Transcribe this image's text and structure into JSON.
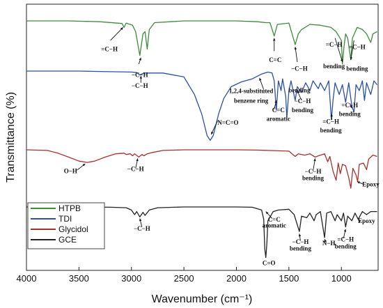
{
  "chart_data": {
    "type": "line",
    "xlabel": "Wavenumber (cm⁻¹)",
    "ylabel": "Transmittance (%)",
    "xlim": [
      4000,
      650
    ],
    "x_ticks": [
      "4000",
      "3500",
      "3000",
      "2500",
      "2000",
      "1500",
      "1000"
    ],
    "legend_position": "bottom-left",
    "series": [
      {
        "name": "HTPB",
        "color": "#3e8a3a",
        "baseline": 0.035,
        "points": [
          [
            4000,
            0.0
          ],
          [
            3600,
            0.0
          ],
          [
            3300,
            0.02
          ],
          [
            3090,
            0.06
          ],
          [
            3070,
            0.15
          ],
          [
            3050,
            0.05
          ],
          [
            2990,
            0.1
          ],
          [
            2960,
            0.25
          ],
          [
            2920,
            0.8
          ],
          [
            2890,
            0.3
          ],
          [
            2870,
            0.25
          ],
          [
            2850,
            0.65
          ],
          [
            2830,
            0.2
          ],
          [
            2780,
            0.04
          ],
          [
            2500,
            0.0
          ],
          [
            2000,
            0.0
          ],
          [
            1800,
            0.02
          ],
          [
            1720,
            0.04
          ],
          [
            1680,
            0.04
          ],
          [
            1640,
            0.35
          ],
          [
            1610,
            0.08
          ],
          [
            1500,
            0.05
          ],
          [
            1440,
            0.55
          ],
          [
            1410,
            0.3
          ],
          [
            1380,
            0.2
          ],
          [
            1300,
            0.08
          ],
          [
            1200,
            0.1
          ],
          [
            1100,
            0.15
          ],
          [
            1050,
            0.25
          ],
          [
            1000,
            0.45
          ],
          [
            990,
            1.0
          ],
          [
            975,
            0.6
          ],
          [
            960,
            0.3
          ],
          [
            940,
            0.4
          ],
          [
            910,
            0.9
          ],
          [
            895,
            0.4
          ],
          [
            850,
            0.15
          ],
          [
            800,
            0.2
          ],
          [
            760,
            0.3
          ],
          [
            720,
            0.5
          ],
          [
            700,
            0.3
          ],
          [
            660,
            0.25
          ]
        ],
        "annotations": [
          {
            "text": "=C−H",
            "x": 3210,
            "y": 0.7
          },
          {
            "text": "−C−H",
            "x": 2920,
            "y": 1.3
          },
          {
            "text": "C=C",
            "x": 1630,
            "y": 0.95
          },
          {
            "text": "−C−H",
            "x": 1400,
            "y": 1.15
          },
          {
            "text": "bending",
            "x": 1400,
            "y": 1.65
          },
          {
            "text": "=C−H",
            "x": 1070,
            "y": 0.6
          },
          {
            "text": "bending",
            "x": 1070,
            "y": 1.1
          },
          {
            "text": "=C−H",
            "x": 850,
            "y": 0.65
          },
          {
            "text": "bending",
            "x": 850,
            "y": 1.15
          }
        ]
      },
      {
        "name": "TDI",
        "color": "#2a4fa8",
        "baseline": 0.3,
        "points": [
          [
            4000,
            0.0
          ],
          [
            3500,
            0.0
          ],
          [
            3300,
            0.02
          ],
          [
            3000,
            0.05
          ],
          [
            2950,
            0.08
          ],
          [
            2920,
            0.2
          ],
          [
            2880,
            0.1
          ],
          [
            2700,
            0.1
          ],
          [
            2500,
            0.3
          ],
          [
            2400,
            1.2
          ],
          [
            2330,
            2.2
          ],
          [
            2280,
            3.3
          ],
          [
            2250,
            3.55
          ],
          [
            2220,
            3.3
          ],
          [
            2170,
            2.2
          ],
          [
            2120,
            1.4
          ],
          [
            2050,
            0.8
          ],
          [
            1950,
            0.55
          ],
          [
            1850,
            0.4
          ],
          [
            1760,
            0.15
          ],
          [
            1700,
            0.05
          ],
          [
            1660,
            0.1
          ],
          [
            1640,
            0.5
          ],
          [
            1620,
            2.0
          ],
          [
            1600,
            0.5
          ],
          [
            1575,
            1.0
          ],
          [
            1560,
            0.4
          ],
          [
            1530,
            1.3
          ],
          [
            1520,
            2.4
          ],
          [
            1500,
            1.0
          ],
          [
            1480,
            0.5
          ],
          [
            1440,
            1.5
          ],
          [
            1420,
            0.8
          ],
          [
            1380,
            1.1
          ],
          [
            1340,
            0.6
          ],
          [
            1300,
            1.0
          ],
          [
            1270,
            0.5
          ],
          [
            1220,
            0.9
          ],
          [
            1200,
            0.6
          ],
          [
            1160,
            1.0
          ],
          [
            1120,
            0.5
          ],
          [
            1095,
            2.5
          ],
          [
            1080,
            1.5
          ],
          [
            1060,
            0.6
          ],
          [
            1020,
            1.2
          ],
          [
            990,
            0.7
          ],
          [
            960,
            1.6
          ],
          [
            930,
            0.6
          ],
          [
            900,
            1.8
          ],
          [
            880,
            2.1
          ],
          [
            860,
            0.7
          ],
          [
            830,
            1.0
          ],
          [
            800,
            0.5
          ],
          [
            780,
            1.5
          ],
          [
            760,
            0.6
          ],
          [
            720,
            1.2
          ],
          [
            690,
            0.5
          ],
          [
            660,
            0.7
          ]
        ],
        "annotations": [
          {
            "text": "−C−H",
            "x": 2920,
            "y": 0.85
          },
          {
            "text": "1,2,4-substituted",
            "x": 1860,
            "y": 1.12
          },
          {
            "text": "benzene ring",
            "x": 1860,
            "y": 1.62
          },
          {
            "text": "N=C=O",
            "x": 2080,
            "y": 2.75
          },
          {
            "text": "C=C",
            "x": 1600,
            "y": 2.1
          },
          {
            "text": "aromatic",
            "x": 1600,
            "y": 2.55
          },
          {
            "text": "−C−H",
            "x": 1370,
            "y": 1.65
          },
          {
            "text": "bending",
            "x": 1370,
            "y": 2.1
          },
          {
            "text": "=C−H",
            "x": 1100,
            "y": 2.7
          },
          {
            "text": "bending",
            "x": 1100,
            "y": 3.15
          },
          {
            "text": "=C−H",
            "x": 920,
            "y": 1.85
          },
          {
            "text": "bending",
            "x": 920,
            "y": 2.3
          }
        ]
      },
      {
        "name": "Glycidol",
        "color": "#a8302a",
        "baseline": 0.2,
        "points": [
          [
            4000,
            0.0
          ],
          [
            3800,
            0.05
          ],
          [
            3700,
            0.25
          ],
          [
            3600,
            0.55
          ],
          [
            3500,
            0.85
          ],
          [
            3420,
            0.95
          ],
          [
            3350,
            0.85
          ],
          [
            3250,
            0.55
          ],
          [
            3150,
            0.3
          ],
          [
            3070,
            0.25
          ],
          [
            3050,
            0.35
          ],
          [
            3010,
            0.3
          ],
          [
            2990,
            0.45
          ],
          [
            2970,
            0.3
          ],
          [
            2930,
            0.55
          ],
          [
            2900,
            0.35
          ],
          [
            2880,
            0.45
          ],
          [
            2850,
            0.3
          ],
          [
            2800,
            0.2
          ],
          [
            2700,
            0.05
          ],
          [
            2500,
            0.0
          ],
          [
            2000,
            0.0
          ],
          [
            1800,
            0.02
          ],
          [
            1700,
            0.05
          ],
          [
            1500,
            0.1
          ],
          [
            1470,
            0.3
          ],
          [
            1440,
            0.5
          ],
          [
            1410,
            0.3
          ],
          [
            1350,
            0.4
          ],
          [
            1300,
            0.3
          ],
          [
            1250,
            0.55
          ],
          [
            1220,
            0.45
          ],
          [
            1160,
            0.3
          ],
          [
            1130,
            0.9
          ],
          [
            1110,
            0.5
          ],
          [
            1080,
            1.6
          ],
          [
            1050,
            2.3
          ],
          [
            1030,
            1.0
          ],
          [
            1010,
            1.8
          ],
          [
            990,
            1.1
          ],
          [
            960,
            1.2
          ],
          [
            930,
            2.1
          ],
          [
            910,
            2.9
          ],
          [
            890,
            1.4
          ],
          [
            860,
            1.9
          ],
          [
            845,
            2.4
          ],
          [
            830,
            1.1
          ],
          [
            790,
            1.0
          ],
          [
            760,
            1.5
          ],
          [
            740,
            0.7
          ],
          [
            700,
            0.4
          ],
          [
            660,
            0.5
          ]
        ],
        "annotations": [
          {
            "text": "O−H",
            "x": 3580,
            "y": 1.75
          },
          {
            "text": "−C−H",
            "x": 2960,
            "y": 1.6
          },
          {
            "text": "−C−H",
            "x": 1270,
            "y": 1.8
          },
          {
            "text": "bending",
            "x": 1270,
            "y": 2.3
          },
          {
            "text": "Epoxy",
            "x": 720,
            "y": 2.75
          }
        ]
      },
      {
        "name": "GCE",
        "color": "#222222",
        "baseline": 0.2,
        "points": [
          [
            4000,
            0.0
          ],
          [
            3500,
            0.0
          ],
          [
            3200,
            0.02
          ],
          [
            3050,
            0.05
          ],
          [
            3000,
            0.2
          ],
          [
            2970,
            0.5
          ],
          [
            2950,
            0.3
          ],
          [
            2920,
            0.65
          ],
          [
            2890,
            0.35
          ],
          [
            2870,
            0.55
          ],
          [
            2830,
            0.2
          ],
          [
            2750,
            0.05
          ],
          [
            2500,
            0.0
          ],
          [
            2000,
            0.0
          ],
          [
            1850,
            0.02
          ],
          [
            1760,
            0.2
          ],
          [
            1740,
            0.8
          ],
          [
            1730,
            2.7
          ],
          [
            1720,
            3.3
          ],
          [
            1710,
            2.4
          ],
          [
            1700,
            0.9
          ],
          [
            1650,
            0.3
          ],
          [
            1600,
            0.2
          ],
          [
            1500,
            0.15
          ],
          [
            1450,
            0.5
          ],
          [
            1400,
            1.6
          ],
          [
            1380,
            0.6
          ],
          [
            1330,
            0.7
          ],
          [
            1300,
            0.4
          ],
          [
            1260,
            0.9
          ],
          [
            1240,
            0.5
          ],
          [
            1200,
            0.3
          ],
          [
            1160,
            2.0
          ],
          [
            1140,
            0.4
          ],
          [
            1100,
            0.3
          ],
          [
            1060,
            0.9
          ],
          [
            1040,
            0.5
          ],
          [
            1000,
            0.9
          ],
          [
            980,
            0.4
          ],
          [
            960,
            1.3
          ],
          [
            940,
            0.6
          ],
          [
            900,
            0.9
          ],
          [
            870,
            0.4
          ],
          [
            840,
            0.8
          ],
          [
            800,
            0.3
          ],
          [
            760,
            0.5
          ],
          [
            720,
            0.3
          ],
          [
            660,
            0.3
          ]
        ],
        "annotations": [
          {
            "text": "−C−H",
            "x": 2900,
            "y": 1.55
          },
          {
            "text": "C=C",
            "x": 1640,
            "y": 0.95
          },
          {
            "text": "aromatic",
            "x": 1640,
            "y": 1.35
          },
          {
            "text": "−C−H",
            "x": 1390,
            "y": 2.4
          },
          {
            "text": "bending",
            "x": 1390,
            "y": 2.85
          },
          {
            "text": "N−H",
            "x": 1120,
            "y": 2.5
          },
          {
            "text": "=C−H",
            "x": 960,
            "y": 2.25
          },
          {
            "text": "bending",
            "x": 960,
            "y": 2.7
          },
          {
            "text": "Epoxy",
            "x": 760,
            "y": 1.05
          },
          {
            "text": "C=O",
            "x": 1690,
            "y": 3.8
          }
        ]
      }
    ],
    "arrows": [
      {
        "series": 0,
        "from": [
          3200,
          0.45
        ],
        "to": [
          3080,
          0.15
        ]
      },
      {
        "series": 0,
        "from": [
          2930,
          1.0
        ],
        "to": [
          2910,
          0.85
        ]
      },
      {
        "series": 0,
        "from": [
          1640,
          0.7
        ],
        "to": [
          1640,
          0.4
        ]
      },
      {
        "series": 0,
        "from": [
          1420,
          0.95
        ],
        "to": [
          1440,
          0.6
        ]
      },
      {
        "series": 0,
        "from": [
          1060,
          0.4
        ],
        "to": [
          990,
          0.95
        ]
      },
      {
        "series": 0,
        "from": [
          880,
          0.45
        ],
        "to": [
          910,
          0.9
        ]
      },
      {
        "series": 1,
        "from": [
          2910,
          0.6
        ],
        "to": [
          2910,
          0.25
        ]
      },
      {
        "series": 1,
        "from": [
          1740,
          0.95
        ],
        "to": [
          1780,
          0.35
        ]
      },
      {
        "series": 1,
        "from": [
          2180,
          2.55
        ],
        "to": [
          2240,
          3.25
        ]
      },
      {
        "series": 1,
        "from": [
          1640,
          1.95
        ],
        "to": [
          1620,
          1.5
        ]
      },
      {
        "series": 1,
        "from": [
          1380,
          1.5
        ],
        "to": [
          1420,
          1.0
        ]
      },
      {
        "series": 1,
        "from": [
          1090,
          2.5
        ],
        "to": [
          1095,
          2.2
        ]
      },
      {
        "series": 1,
        "from": [
          920,
          1.65
        ],
        "to": [
          900,
          1.9
        ]
      },
      {
        "series": 2,
        "from": [
          3520,
          1.55
        ],
        "to": [
          3440,
          1.05
        ]
      },
      {
        "series": 2,
        "from": [
          2960,
          1.4
        ],
        "to": [
          2940,
          0.65
        ]
      },
      {
        "series": 2,
        "from": [
          1270,
          1.6
        ],
        "to": [
          1250,
          0.65
        ]
      },
      {
        "series": 2,
        "from": [
          790,
          2.6
        ],
        "to": [
          850,
          2.4
        ]
      },
      {
        "series": 3,
        "from": [
          2900,
          1.3
        ],
        "to": [
          2920,
          0.75
        ]
      },
      {
        "series": 3,
        "from": [
          1660,
          0.75
        ],
        "to": [
          1720,
          0.3
        ]
      },
      {
        "series": 3,
        "from": [
          1390,
          2.2
        ],
        "to": [
          1400,
          1.75
        ]
      },
      {
        "series": 3,
        "from": [
          1150,
          2.3
        ],
        "to": [
          1160,
          2.1
        ]
      },
      {
        "series": 3,
        "from": [
          980,
          2.05
        ],
        "to": [
          960,
          1.45
        ]
      },
      {
        "series": 3,
        "from": [
          820,
          0.95
        ],
        "to": [
          840,
          0.85
        ]
      }
    ]
  }
}
